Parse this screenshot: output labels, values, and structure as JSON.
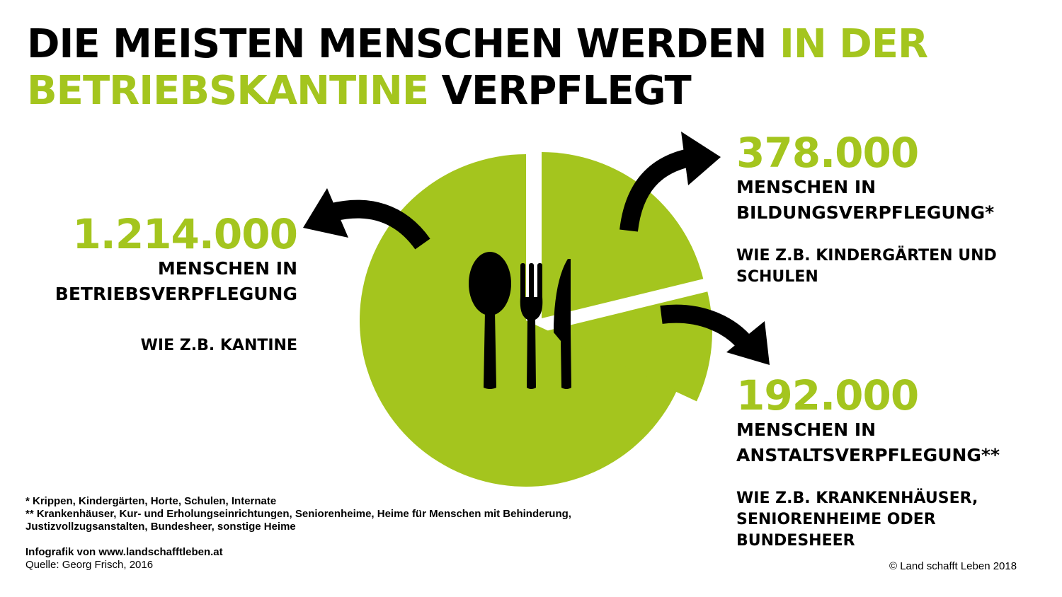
{
  "title": {
    "part1": "DIE MEISTEN MENSCHEN WERDEN ",
    "part2_highlight": "IN DER BETRIEBSKANTINE",
    "part3": " VERPFLEGT"
  },
  "colors": {
    "accent": "#a4c51e",
    "text": "#000000",
    "background": "#ffffff"
  },
  "chart_data": {
    "type": "pie",
    "slices": [
      {
        "value": 1214000,
        "number": "1.214.000",
        "label": "MENSCHEN IN BETRIEBSVERPFLEGUNG",
        "example": "WIE Z.B. KANTINE"
      },
      {
        "value": 378000,
        "number": "378.000",
        "label": "MENSCHEN IN BILDUNGSVERPFLEGUNG*",
        "example": "WIE Z.B. KINDERGÄRTEN UND SCHULEN"
      },
      {
        "value": 192000,
        "number": "192.000",
        "label": "MENSCHEN IN ANSTALTSVERPFLEGUNG**",
        "example": "WIE Z.B. KRANKENHÄUSER, SENIORENHEIME ODER BUNDESHEER"
      }
    ],
    "center_icon": "cutlery-icon"
  },
  "left": {
    "number": "1.214.000",
    "label_line1": "MENSCHEN IN",
    "label_line2": "BETRIEBSVERPFLEGUNG",
    "example": "WIE Z.B. KANTINE"
  },
  "right1": {
    "number": "378.000",
    "label_line1": "MENSCHEN IN",
    "label_line2": "BILDUNGSVERPFLEGUNG*",
    "example_line1": "WIE Z.B. KINDERGÄRTEN UND",
    "example_line2": "SCHULEN"
  },
  "right2": {
    "number": "192.000",
    "label_line1": "MENSCHEN IN",
    "label_line2": "ANSTALTSVERPFLEGUNG**",
    "example_line1": "WIE Z.B. KRANKENHÄUSER,",
    "example_line2": "SENIORENHEIME ODER",
    "example_line3": "BUNDESHEER"
  },
  "footnotes": {
    "line1": "* Krippen, Kindergärten, Horte, Schulen, Internate",
    "line2": "** Krankenhäuser, Kur- und Erholungseinrichtungen, Seniorenheime, Heime für Menschen mit Behinderung,",
    "line3": "Justizvollzugsanstalten, Bundesheer, sonstige Heime"
  },
  "source": {
    "infographic": "Infografik von www.landschafftleben.at",
    "quelle": "Quelle: Georg Frisch, 2016"
  },
  "copyright": "© Land schafft Leben 2018"
}
